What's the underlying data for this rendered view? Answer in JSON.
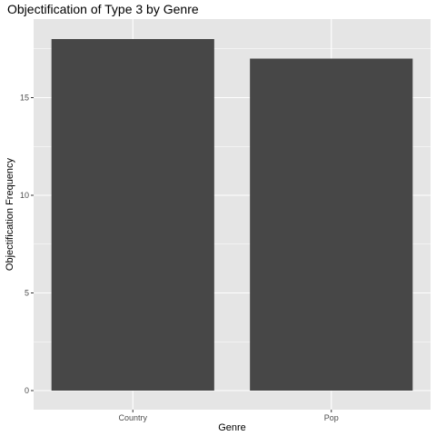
{
  "chart_data": {
    "type": "bar",
    "title": "Objectification of Type 3 by Genre",
    "xlabel": "Genre",
    "ylabel": "Objectification Frequency",
    "categories": [
      "Country",
      "Pop"
    ],
    "values": [
      18,
      17
    ],
    "ylim": [
      0,
      19
    ],
    "yticks": [
      0,
      5,
      10,
      15
    ],
    "ytick_labels": [
      "0",
      "5",
      "10",
      "15"
    ],
    "grid": true,
    "colors": {
      "panel_bg": "#E5E5E5",
      "grid": "#FFFFFF",
      "bar": "#474747",
      "tick_label": "#4D4D4D",
      "tick_mark": "#333333",
      "text": "#000000"
    }
  }
}
